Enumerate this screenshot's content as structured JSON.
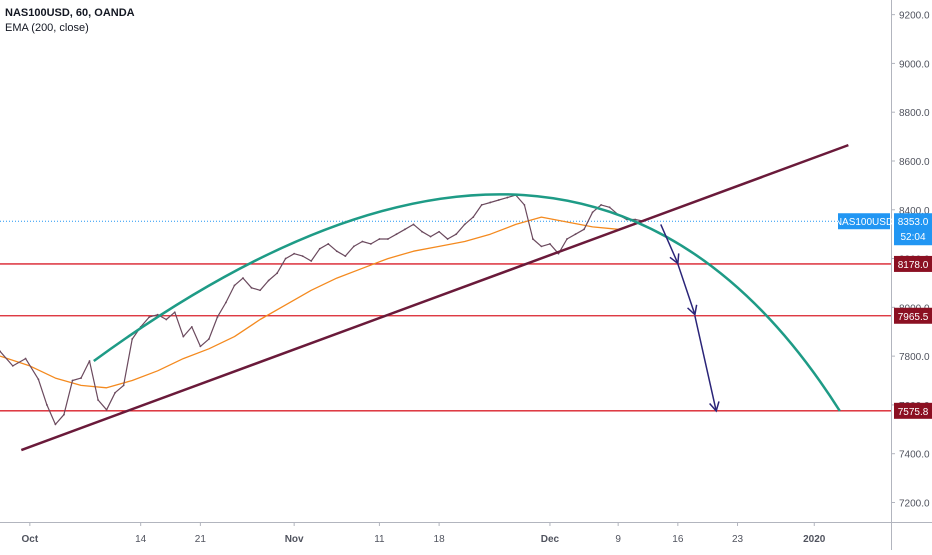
{
  "legend": {
    "symbol_line": "NAS100USD, 60, OANDA",
    "indicator_line": "EMA (200, close)"
  },
  "colors": {
    "candle_line": "#6b4a5e",
    "ema": "#f48a1f",
    "arc": "#1e9b86",
    "trendline": "#6a1a3a",
    "level_line": "#d91f2a",
    "level_tag": "#8b1022",
    "price_tag": "#2196f3",
    "arrow": "#2a2478",
    "current_price_dotted": "#2196f3"
  },
  "chart_data": {
    "type": "line",
    "title": "NAS100USD, 60, OANDA",
    "ylim": [
      7120,
      9260
    ],
    "y_ticks": [
      9200,
      9000,
      8800,
      8600,
      8400,
      8200,
      8000,
      7800,
      7600,
      7400,
      7200
    ],
    "y_tick_labels": [
      "9200.0",
      "9000.0",
      "8800.0",
      "8600.0",
      "8400.0",
      "8200.0",
      "8000.0",
      "7800.0",
      "7600.0",
      "7400.0",
      "7200.0"
    ],
    "x_ticks": [
      {
        "label": "Oct",
        "x": 0
      },
      {
        "label": "14",
        "x": 13
      },
      {
        "label": "21",
        "x": 20
      },
      {
        "label": "Nov",
        "x": 31
      },
      {
        "label": "11",
        "x": 41
      },
      {
        "label": "18",
        "x": 48
      },
      {
        "label": "Dec",
        "x": 61
      },
      {
        "label": "9",
        "x": 69
      },
      {
        "label": "16",
        "x": 76
      },
      {
        "label": "23",
        "x": 83
      },
      {
        "label": "2020",
        "x": 92
      }
    ],
    "xlim": [
      -3.5,
      101
    ],
    "series": [
      {
        "name": "NAS100USD",
        "x": [
          -3.5,
          -2,
          -0.5,
          1,
          2,
          3,
          4,
          5,
          6,
          7,
          8,
          9,
          10,
          11,
          12,
          13,
          14,
          15,
          16,
          17,
          18,
          19,
          20,
          21,
          22,
          23,
          24,
          25,
          26,
          27,
          28,
          29,
          30,
          31,
          32,
          33,
          34,
          35,
          36,
          37,
          38,
          39,
          40,
          41,
          42,
          43,
          44,
          45,
          46,
          47,
          48,
          49,
          50,
          51,
          52,
          53,
          54,
          55,
          56,
          57,
          58,
          59,
          60,
          61,
          62,
          63,
          64,
          65,
          66,
          67,
          68,
          69,
          70,
          71,
          72
        ],
        "values": [
          7820,
          7760,
          7790,
          7705,
          7600,
          7520,
          7560,
          7700,
          7710,
          7780,
          7620,
          7580,
          7650,
          7680,
          7870,
          7920,
          7960,
          7970,
          7950,
          7980,
          7880,
          7920,
          7840,
          7870,
          7960,
          8020,
          8090,
          8120,
          8080,
          8070,
          8110,
          8140,
          8200,
          8220,
          8210,
          8190,
          8240,
          8260,
          8230,
          8210,
          8250,
          8270,
          8260,
          8280,
          8280,
          8300,
          8320,
          8340,
          8310,
          8290,
          8310,
          8280,
          8300,
          8340,
          8370,
          8420,
          8430,
          8440,
          8450,
          8460,
          8420,
          8280,
          8250,
          8260,
          8220,
          8280,
          8300,
          8320,
          8390,
          8420,
          8410,
          8380,
          8360,
          8360,
          8353
        ]
      },
      {
        "name": "EMA (200, close)",
        "x": [
          -3.5,
          0,
          3,
          6,
          9,
          12,
          15,
          18,
          21,
          24,
          27,
          30,
          33,
          36,
          39,
          42,
          45,
          48,
          51,
          54,
          57,
          60,
          63,
          66,
          69,
          71
        ],
        "values": [
          7800,
          7760,
          7710,
          7680,
          7670,
          7700,
          7740,
          7790,
          7830,
          7880,
          7950,
          8010,
          8070,
          8120,
          8160,
          8200,
          8230,
          8250,
          8270,
          8300,
          8340,
          8370,
          8350,
          8330,
          8320,
          8340
        ]
      }
    ],
    "horizontal_levels": [
      {
        "label": "8178.0",
        "value": 8178
      },
      {
        "label": "7965.5",
        "value": 7965.5
      },
      {
        "label": "7575.8",
        "value": 7575.8
      }
    ],
    "last_price": {
      "label": "NAS100USD",
      "value_label": "8353.0",
      "countdown": "52:04",
      "value": 8353
    },
    "trendline": {
      "from": [
        -1,
        7415
      ],
      "to": [
        96,
        8665
      ]
    },
    "arc": {
      "from": [
        7.5,
        7780
      ],
      "peak": [
        58,
        8460
      ],
      "to": [
        95,
        7575
      ]
    },
    "projection_arrows": [
      {
        "from": [
          74,
          8340
        ],
        "to": [
          76,
          8180
        ]
      },
      {
        "from": [
          76,
          8178
        ],
        "to": [
          78,
          7970
        ]
      },
      {
        "from": [
          78,
          7965
        ],
        "to": [
          80.5,
          7575
        ]
      }
    ]
  }
}
